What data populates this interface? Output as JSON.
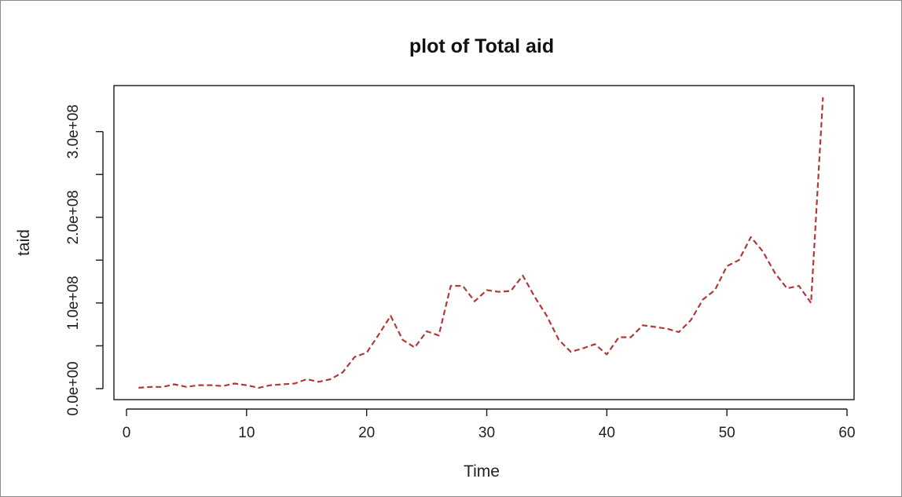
{
  "chart_data": {
    "type": "line",
    "title": "plot of Total aid",
    "xlabel": "Time",
    "ylabel": "taid",
    "xlim": [
      0,
      60
    ],
    "ylim": [
      0,
      340000000
    ],
    "x_ticks": [
      0,
      10,
      20,
      30,
      40,
      50,
      60
    ],
    "x_tick_labels": [
      "0",
      "10",
      "20",
      "30",
      "40",
      "50",
      "60"
    ],
    "y_ticks": [
      0,
      50000000,
      100000000,
      150000000,
      200000000,
      250000000,
      300000000
    ],
    "y_tick_labels": [
      "0.0e+00",
      "",
      "1.0e+08",
      "",
      "2.0e+08",
      "",
      "3.0e+08"
    ],
    "grid": false,
    "line_style": "dashed",
    "line_color": "#b03a3a",
    "series": [
      {
        "x": [
          1,
          2,
          3,
          4,
          5,
          6,
          7,
          8,
          9,
          10,
          11,
          12,
          13,
          14,
          15,
          16,
          17,
          18,
          19,
          20,
          21,
          22,
          23,
          24,
          25,
          26,
          27,
          28,
          29,
          30,
          31,
          32,
          33,
          34,
          35,
          36,
          37,
          38,
          39,
          40,
          41,
          42,
          43,
          44,
          45,
          46,
          47,
          48,
          49,
          50,
          51,
          52,
          53,
          54,
          55,
          56,
          57,
          58
        ],
        "values": [
          1000000,
          2000000,
          2000000,
          5000000,
          2000000,
          4000000,
          4000000,
          3000000,
          6000000,
          4000000,
          1000000,
          4000000,
          5000000,
          6000000,
          11000000,
          8000000,
          11000000,
          19000000,
          37000000,
          42000000,
          63000000,
          85000000,
          57000000,
          48000000,
          67000000,
          62000000,
          120000000,
          120000000,
          102000000,
          115000000,
          113000000,
          114000000,
          132000000,
          107000000,
          85000000,
          57000000,
          43000000,
          47000000,
          52000000,
          40000000,
          60000000,
          60000000,
          74000000,
          72000000,
          70000000,
          66000000,
          80000000,
          104000000,
          115000000,
          143000000,
          150000000,
          177000000,
          160000000,
          135000000,
          117000000,
          120000000,
          100000000,
          340000000
        ]
      }
    ]
  }
}
